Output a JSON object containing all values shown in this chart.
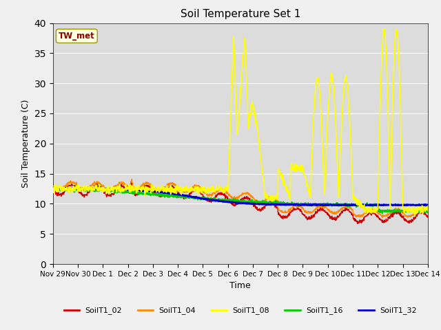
{
  "title": "Soil Temperature Set 1",
  "xlabel": "Time",
  "ylabel": "Soil Temperature (C)",
  "ylim": [
    0,
    40
  ],
  "yticks": [
    0,
    5,
    10,
    15,
    20,
    25,
    30,
    35,
    40
  ],
  "plot_bg_color": "#dcdcdc",
  "fig_bg_color": "#f0f0f0",
  "annotation_text": "TW_met",
  "annotation_color": "#8b0000",
  "annotation_bg": "#ffffe0",
  "series_colors": {
    "SoilT1_02": "#cc0000",
    "SoilT1_04": "#ff8800",
    "SoilT1_08": "#ffff00",
    "SoilT1_16": "#00cc00",
    "SoilT1_32": "#0000cc"
  },
  "legend_colors": [
    "#cc0000",
    "#ff8800",
    "#ffff00",
    "#00cc00",
    "#0000cc"
  ],
  "legend_labels": [
    "SoilT1_02",
    "SoilT1_04",
    "SoilT1_08",
    "SoilT1_16",
    "SoilT1_32"
  ],
  "xtick_labels": [
    "Nov 29",
    "Nov 30",
    "Dec 1",
    "Dec 2",
    "Dec 3",
    "Dec 4",
    "Dec 5",
    "Dec 6",
    "Dec 7",
    "Dec 8",
    "Dec 9",
    "Dec 10",
    "Dec 11",
    "Dec 12",
    "Dec 13",
    "Dec 14"
  ],
  "num_days": 15,
  "points_per_day": 96
}
